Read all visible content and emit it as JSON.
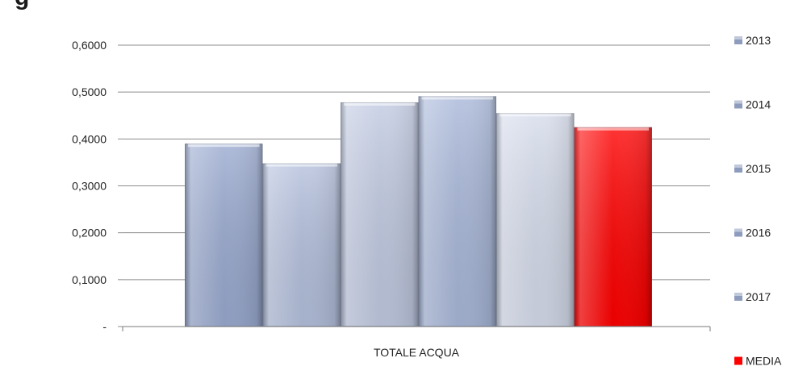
{
  "title": "g",
  "chart_data": {
    "type": "bar",
    "categories": [
      "TOTALE ACQUA"
    ],
    "series": [
      {
        "name": "2013",
        "values": [
          0.39
        ],
        "color": "#9aaad0"
      },
      {
        "name": "2014",
        "values": [
          0.348
        ],
        "color": "#b4c0dd"
      },
      {
        "name": "2015",
        "values": [
          0.478
        ],
        "color": "#c1cae2"
      },
      {
        "name": "2016",
        "values": [
          0.491
        ],
        "color": "#a9b8da"
      },
      {
        "name": "2017",
        "values": [
          0.455
        ],
        "color": "#d6dcec"
      },
      {
        "name": "MEDIA",
        "values": [
          0.425
        ],
        "color": "#ff0000"
      }
    ],
    "yticks": [
      "-",
      "0,1000",
      "0,2000",
      "0,3000",
      "0,4000",
      "0,5000",
      "0,6000"
    ],
    "ylim": [
      0,
      0.6
    ],
    "grid": true,
    "legend": "right"
  }
}
